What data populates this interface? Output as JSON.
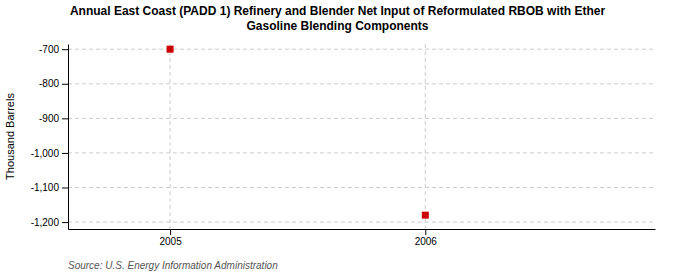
{
  "chart_data": {
    "type": "scatter",
    "title": "Annual East Coast (PADD 1) Refinery and Blender Net Input of Reformulated RBOB with Ether\nGasoline Blending Components",
    "y_label": "Thousand Barrels",
    "source": "Source: U.S. Energy Information Administration",
    "x": [
      2005,
      2006
    ],
    "values": [
      -700,
      -1180
    ],
    "color": "#cc0000",
    "marker": "square",
    "xlim": [
      2004.6,
      2006.9
    ],
    "xticks": [
      2005,
      2006
    ],
    "ylim": [
      -1220,
      -685
    ],
    "yticks": [
      -700,
      -800,
      -900,
      {
        "value": -1000,
        "label": "-1,000"
      },
      {
        "value": -1100,
        "label": "-1,100"
      },
      {
        "value": -1200,
        "label": "-1,200"
      }
    ],
    "grid": true
  }
}
